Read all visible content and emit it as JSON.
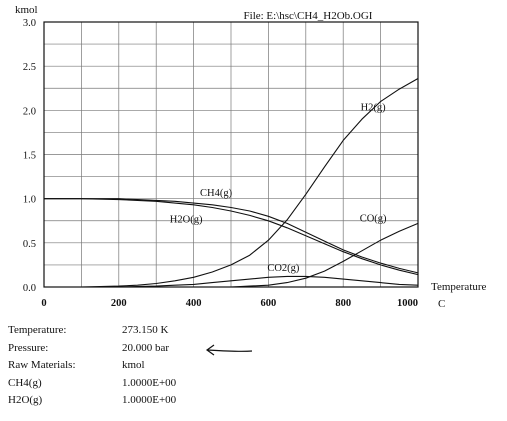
{
  "chart_data": {
    "type": "line",
    "file_label": "File: E:\\hsc\\CH4_H2Ob.OGI",
    "ylabel": "kmol",
    "xlabel": "Temperature",
    "xunit": "C",
    "xlim": [
      0,
      1000
    ],
    "ylim": [
      0,
      3.0
    ],
    "x_ticks": [
      0,
      200,
      400,
      600,
      800,
      1000
    ],
    "x_tick_labels": [
      "0",
      "200",
      "400",
      "600",
      "800",
      "1000"
    ],
    "y_ticks": [
      0,
      0.5,
      1.0,
      1.5,
      2.0,
      2.5,
      3.0
    ],
    "y_tick_labels": [
      "0.0",
      "0.5",
      "1.0",
      "1.5",
      "2.0",
      "2.5",
      "3.0"
    ],
    "grid": true,
    "series": [
      {
        "name": "H2(g)",
        "x": [
          0,
          100,
          200,
          250,
          300,
          350,
          400,
          450,
          500,
          550,
          600,
          650,
          700,
          750,
          800,
          850,
          900,
          950,
          1000
        ],
        "y": [
          0.0,
          0.0,
          0.01,
          0.02,
          0.04,
          0.07,
          0.11,
          0.17,
          0.25,
          0.36,
          0.53,
          0.76,
          1.05,
          1.36,
          1.66,
          1.9,
          2.1,
          2.24,
          2.36
        ]
      },
      {
        "name": "CH4(g)",
        "x": [
          0,
          100,
          200,
          250,
          300,
          350,
          400,
          450,
          500,
          550,
          600,
          650,
          700,
          750,
          800,
          850,
          900,
          950,
          1000
        ],
        "y": [
          1.0,
          1.0,
          1.0,
          0.99,
          0.98,
          0.97,
          0.95,
          0.93,
          0.9,
          0.86,
          0.8,
          0.72,
          0.62,
          0.52,
          0.42,
          0.34,
          0.27,
          0.21,
          0.16
        ]
      },
      {
        "name": "H2O(g)",
        "x": [
          0,
          100,
          200,
          250,
          300,
          350,
          400,
          450,
          500,
          550,
          600,
          650,
          700,
          750,
          800,
          850,
          900,
          950,
          1000
        ],
        "y": [
          1.0,
          1.0,
          0.99,
          0.98,
          0.97,
          0.95,
          0.93,
          0.9,
          0.86,
          0.81,
          0.75,
          0.67,
          0.58,
          0.49,
          0.4,
          0.32,
          0.25,
          0.19,
          0.14
        ]
      },
      {
        "name": "CO(g)",
        "x": [
          0,
          300,
          400,
          500,
          550,
          600,
          650,
          700,
          750,
          800,
          850,
          900,
          950,
          1000
        ],
        "y": [
          0.0,
          0.0,
          0.0,
          0.0,
          0.01,
          0.02,
          0.05,
          0.1,
          0.18,
          0.29,
          0.41,
          0.53,
          0.63,
          0.72
        ]
      },
      {
        "name": "CO2(g)",
        "x": [
          0,
          200,
          300,
          350,
          400,
          450,
          500,
          550,
          600,
          650,
          700,
          750,
          800,
          850,
          900,
          950,
          1000
        ],
        "y": [
          0.0,
          0.0,
          0.01,
          0.02,
          0.03,
          0.05,
          0.07,
          0.09,
          0.11,
          0.12,
          0.12,
          0.11,
          0.09,
          0.07,
          0.05,
          0.03,
          0.02
        ]
      }
    ],
    "annotations": [
      {
        "text": "H2(g)",
        "x": 880,
        "y": 2.0
      },
      {
        "text": "CH4(g)",
        "x": 460,
        "y": 1.03
      },
      {
        "text": "H2O(g)",
        "x": 380,
        "y": 0.73
      },
      {
        "text": "CO(g)",
        "x": 880,
        "y": 0.74
      },
      {
        "text": "CO2(g)",
        "x": 640,
        "y": 0.18
      }
    ]
  },
  "info": [
    {
      "label": "Temperature:",
      "value": "273.150 K"
    },
    {
      "label": "Pressure:",
      "value": "20.000 bar"
    },
    {
      "label": "Raw Materials:",
      "value": "kmol"
    },
    {
      "label": "CH4(g)",
      "value": "1.0000E+00"
    },
    {
      "label": "H2O(g)",
      "value": "1.0000E+00"
    }
  ]
}
